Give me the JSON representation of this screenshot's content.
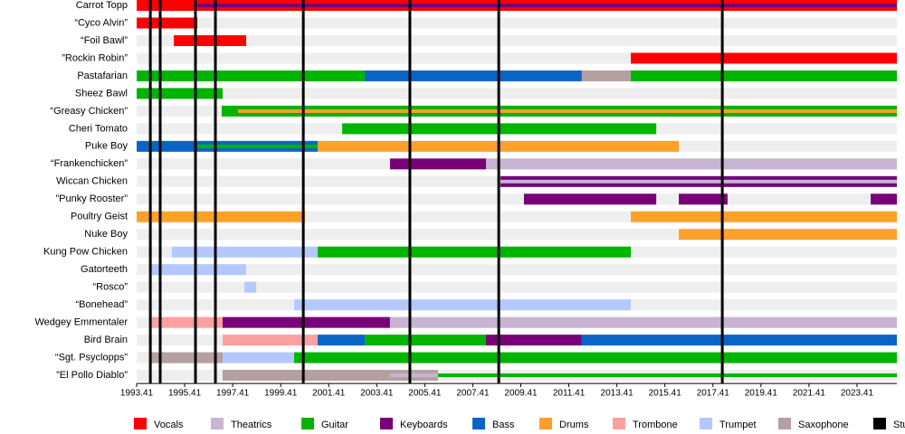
{
  "chart_data": {
    "type": "timeline",
    "xlim": [
      1993.41,
      2025.07
    ],
    "xticks": [
      1993.41,
      1995.41,
      1997.41,
      1999.41,
      2001.41,
      2003.41,
      2005.41,
      2007.41,
      2009.41,
      2011.41,
      2013.41,
      2015.41,
      2017.41,
      2019.41,
      2021.41,
      2023.41
    ],
    "roles": [
      {
        "name": "Vocals",
        "color": "#ff0000"
      },
      {
        "name": "Theatrics",
        "color": "#c8b4d2"
      },
      {
        "name": "Guitar",
        "color": "#00b400"
      },
      {
        "name": "Keyboards",
        "color": "#780078"
      },
      {
        "name": "Bass",
        "color": "#0a64c8"
      },
      {
        "name": "Drums",
        "color": "#ffa028"
      },
      {
        "name": "Trombone",
        "color": "#ffa0a0"
      },
      {
        "name": "Trumpet",
        "color": "#b4c8ff"
      },
      {
        "name": "Saxophone",
        "color": "#b4a0a0"
      }
    ],
    "albums": {
      "name": "Studio albums",
      "color": "#000000",
      "values": [
        1993.98,
        1994.39,
        1995.86,
        1996.69,
        2000.35,
        2004.79,
        2008.49,
        2017.8
      ]
    },
    "members": [
      {
        "name": "Carrot Topp",
        "periods": [
          {
            "role": "Vocals",
            "start": 1993.41,
            "end": 2025.07
          }
        ],
        "secondary": [
          {
            "role": "Keyboards",
            "start": 1995.94,
            "end": 2025.07
          }
        ]
      },
      {
        "name": "“Cyco Alvin”",
        "periods": [
          {
            "role": "Vocals",
            "start": 1993.41,
            "end": 1995.94
          }
        ]
      },
      {
        "name": "“Foil Bawl”",
        "periods": [
          {
            "role": "Vocals",
            "start": 1994.96,
            "end": 1997.97
          }
        ]
      },
      {
        "name": "”Rockin Robin”",
        "periods": [
          {
            "role": "Vocals",
            "start": 2013.99,
            "end": 2025.07
          }
        ]
      },
      {
        "name": "Pastafarian",
        "periods": [
          {
            "role": "Guitar",
            "start": 1993.41,
            "end": 2002.91
          },
          {
            "role": "Bass",
            "start": 2002.91,
            "end": 2011.95
          },
          {
            "role": "Saxophone",
            "start": 2011.95,
            "end": 2013.99
          },
          {
            "role": "Guitar",
            "start": 2013.99,
            "end": 2025.07
          }
        ]
      },
      {
        "name": "Sheez Bawl",
        "periods": [
          {
            "role": "Guitar",
            "start": 1993.41,
            "end": 1996.99
          }
        ]
      },
      {
        "name": "“Greasy Chicken”",
        "periods": [
          {
            "role": "Guitar",
            "start": 1996.95,
            "end": 2025.07
          }
        ],
        "secondary": [
          {
            "role": "Drums",
            "start": 1997.63,
            "end": 2025.07
          }
        ]
      },
      {
        "name": "Cheri Tomato",
        "periods": [
          {
            "role": "Guitar",
            "start": 2001.97,
            "end": 2015.05
          }
        ]
      },
      {
        "name": "Puke Boy",
        "periods": [
          {
            "role": "Bass",
            "start": 1993.41,
            "end": 2000.95
          },
          {
            "role": "Drums",
            "start": 2000.95,
            "end": 2015.99
          }
        ],
        "secondary": [
          {
            "role": "Guitar",
            "start": 1995.94,
            "end": 2000.95
          }
        ]
      },
      {
        "name": "“Frankenchicken”",
        "periods": [
          {
            "role": "Keyboards",
            "start": 2003.96,
            "end": 2007.96
          },
          {
            "role": "Theatrics",
            "start": 2007.96,
            "end": 2025.07
          }
        ]
      },
      {
        "name": "Wiccan Chicken",
        "periods": [
          {
            "role": "Keyboards",
            "start": 2008.56,
            "end": 2025.07
          }
        ],
        "secondary": [
          {
            "role": "Theatrics",
            "start": 2008.56,
            "end": 2025.07
          }
        ]
      },
      {
        "name": "”Punky Rooster”",
        "periods": [
          {
            "role": "Keyboards",
            "start": 2009.54,
            "end": 2015.05
          },
          {
            "role": "Keyboards",
            "start": 2015.99,
            "end": 2018.02
          },
          {
            "role": "Keyboards",
            "start": 2023.98,
            "end": 2025.07
          }
        ]
      },
      {
        "name": "Poultry Geist",
        "periods": [
          {
            "role": "Drums",
            "start": 1993.41,
            "end": 2000.42
          },
          {
            "role": "Drums",
            "start": 2013.99,
            "end": 2025.07
          }
        ]
      },
      {
        "name": "Nuke Boy",
        "periods": [
          {
            "role": "Drums",
            "start": 2015.99,
            "end": 2025.07
          }
        ]
      },
      {
        "name": "Kung Pow Chicken",
        "periods": [
          {
            "role": "Trumpet",
            "start": 1994.88,
            "end": 2000.95
          },
          {
            "role": "Guitar",
            "start": 2000.95,
            "end": 2013.99
          }
        ]
      },
      {
        "name": "Gatorteeth",
        "periods": [
          {
            "role": "Trumpet",
            "start": 1993.94,
            "end": 1997.97
          }
        ]
      },
      {
        "name": "“Rosco”",
        "periods": [
          {
            "role": "Trumpet",
            "start": 1997.9,
            "end": 1998.39
          }
        ]
      },
      {
        "name": "“Bonehead”",
        "periods": [
          {
            "role": "Trumpet",
            "start": 1999.97,
            "end": 2013.99
          }
        ]
      },
      {
        "name": "Wedgey Emmentaler",
        "periods": [
          {
            "role": "Trombone",
            "start": 1993.94,
            "end": 1996.99
          },
          {
            "role": "Keyboards",
            "start": 1996.99,
            "end": 2003.96
          },
          {
            "role": "Theatrics",
            "start": 2003.96,
            "end": 2025.07
          }
        ]
      },
      {
        "name": "Bird Brain",
        "periods": [
          {
            "role": "Trombone",
            "start": 1996.99,
            "end": 2000.95
          },
          {
            "role": "Bass",
            "start": 2000.95,
            "end": 2002.91
          },
          {
            "role": "Guitar",
            "start": 2002.91,
            "end": 2007.96
          },
          {
            "role": "Keyboards",
            "start": 2007.96,
            "end": 2011.95
          },
          {
            "role": "Bass",
            "start": 2011.95,
            "end": 2025.07
          }
        ]
      },
      {
        "name": "“Sgt. Psyclopps”",
        "periods": [
          {
            "role": "Saxophone",
            "start": 1993.94,
            "end": 1996.99
          },
          {
            "role": "Trumpet",
            "start": 1996.99,
            "end": 1999.97
          },
          {
            "role": "Guitar",
            "start": 1999.97,
            "end": 2025.07
          }
        ]
      },
      {
        "name": "”El Pollo Diablo”",
        "periods": [
          {
            "role": "Saxophone",
            "start": 1996.99,
            "end": 2005.96
          }
        ],
        "secondary": [
          {
            "role": "Theatrics",
            "start": 2003.96,
            "end": 2005.96
          },
          {
            "role": "Guitar",
            "start": 2005.96,
            "end": 2025.07
          }
        ]
      }
    ]
  }
}
